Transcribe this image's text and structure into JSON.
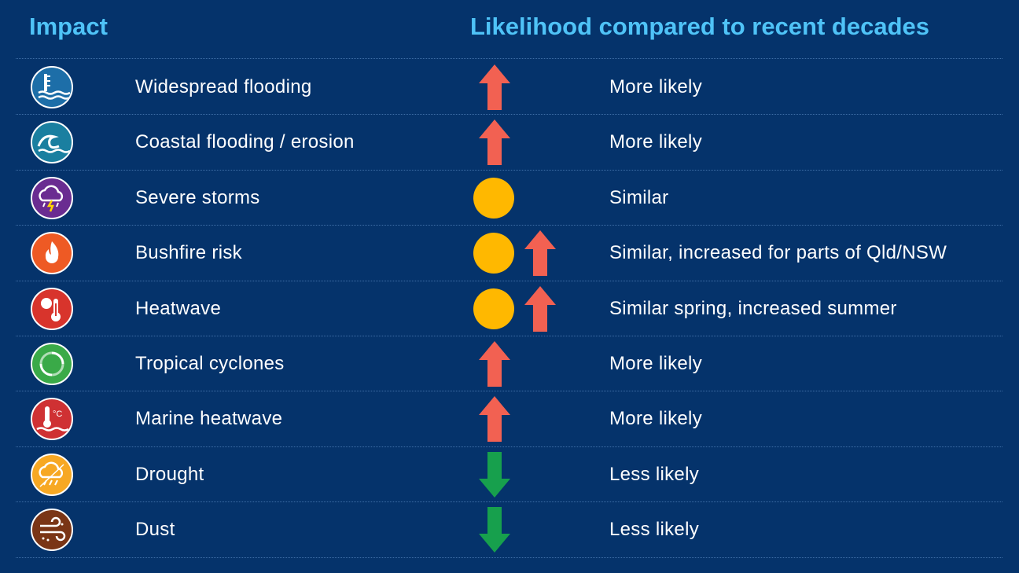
{
  "header": {
    "impact": "Impact",
    "likelihood": "Likelihood compared to recent decades"
  },
  "colors": {
    "background": "#05336b",
    "header_text": "#4fc3f7",
    "arrow_up": "#f26152",
    "arrow_down": "#17a04d",
    "circle": "#ffb800"
  },
  "rows": [
    {
      "label": "Widespread flooding",
      "likelihood": "More likely",
      "icon": "flood-gauge-icon",
      "icon_color": "#1d6ea8",
      "indicators": [
        "up"
      ]
    },
    {
      "label": "Coastal flooding / erosion",
      "likelihood": "More likely",
      "icon": "wave-icon",
      "icon_color": "#1a7fa0",
      "indicators": [
        "up"
      ]
    },
    {
      "label": "Severe storms",
      "likelihood": "Similar",
      "icon": "storm-cloud-icon",
      "icon_color": "#6a2c91",
      "indicators": [
        "circle"
      ]
    },
    {
      "label": "Bushfire risk",
      "likelihood": "Similar, increased for parts of Qld/NSW",
      "icon": "flame-icon",
      "icon_color": "#ee5a24",
      "indicators": [
        "circle",
        "up"
      ]
    },
    {
      "label": "Heatwave",
      "likelihood": "Similar spring, increased summer",
      "icon": "thermometer-sun-icon",
      "icon_color": "#d8342c",
      "indicators": [
        "circle",
        "up"
      ]
    },
    {
      "label": "Tropical cyclones",
      "likelihood": "More likely",
      "icon": "cyclone-icon",
      "icon_color": "#3aaa48",
      "indicators": [
        "up"
      ]
    },
    {
      "label": "Marine heatwave",
      "likelihood": "More likely",
      "icon": "marine-thermometer-icon",
      "icon_color": "#cf3133",
      "indicators": [
        "up"
      ]
    },
    {
      "label": "Drought",
      "likelihood": "Less likely",
      "icon": "drought-cloud-icon",
      "icon_color": "#f7a823",
      "indicators": [
        "down"
      ]
    },
    {
      "label": "Dust",
      "likelihood": "Less likely",
      "icon": "dust-wind-icon",
      "icon_color": "#7a3516",
      "indicators": [
        "down"
      ]
    }
  ]
}
